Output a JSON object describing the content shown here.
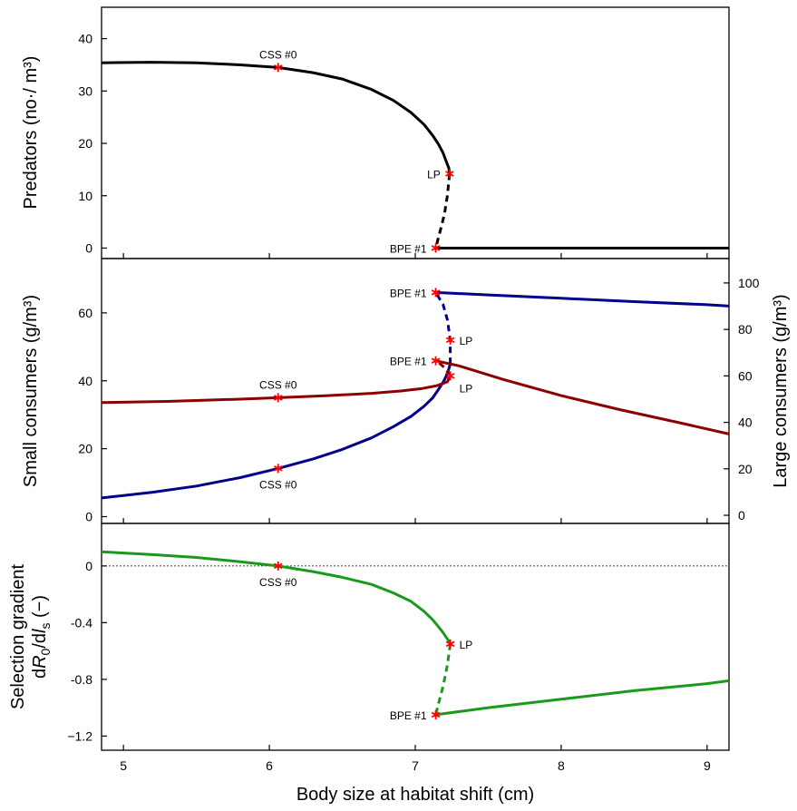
{
  "colors": {
    "predators": "#000000",
    "small": "#00008b",
    "large": "#8b0000",
    "gradient": "#1a9a1a",
    "marker": "#ff0000"
  },
  "x_axis": {
    "label": "Body size at habitat shift (cm)",
    "range": [
      4.85,
      9.15
    ],
    "ticks": [
      5,
      6,
      7,
      8,
      9
    ]
  },
  "chart_data": [
    {
      "type": "line",
      "panel": "top",
      "ylabel": "Predators (no·/ m³)",
      "ylim": [
        -2,
        46
      ],
      "yticks": [
        0,
        10,
        20,
        30,
        40
      ],
      "series": [
        {
          "style": "solid",
          "color": "#000000",
          "x": [
            4.85,
            5.2,
            5.5,
            5.8,
            6.06,
            6.3,
            6.5,
            6.7,
            6.85,
            6.97,
            7.06,
            7.12,
            7.16,
            7.19,
            7.21,
            7.23,
            7.235
          ],
          "y": [
            35.4,
            35.5,
            35.4,
            35.0,
            34.5,
            33.5,
            32.3,
            30.3,
            28.2,
            25.9,
            23.6,
            21.5,
            19.8,
            18.2,
            16.7,
            15.3,
            14.2
          ]
        },
        {
          "style": "dashed",
          "color": "#000000",
          "x": [
            7.235,
            7.22,
            7.2,
            7.17,
            7.14
          ],
          "y": [
            14.2,
            10.0,
            6.5,
            3.2,
            0.0
          ]
        },
        {
          "style": "solid",
          "color": "#000000",
          "x": [
            7.14,
            9.15
          ],
          "y": [
            0.0,
            0.0
          ]
        }
      ],
      "points": [
        {
          "label": "CSS #0",
          "x": 6.06,
          "y": 34.5,
          "pos": "above"
        },
        {
          "label": "LP",
          "x": 7.235,
          "y": 14.2,
          "pos": "left"
        },
        {
          "label": "BPE #1",
          "x": 7.14,
          "y": 0.0,
          "pos": "left"
        }
      ]
    },
    {
      "type": "line",
      "panel": "middle",
      "ylabel": "Small consumers (g/m³)",
      "ylim": [
        -2,
        76
      ],
      "yticks": [
        0,
        20,
        40,
        60
      ],
      "y2label": "Large consumers (g/m³)",
      "y2lim": [
        -3.5,
        110.5
      ],
      "y2ticks": [
        0,
        20,
        40,
        60,
        80,
        100
      ],
      "series": [
        {
          "name": "Small consumers",
          "axis": "left",
          "style": "solid",
          "color": "#00008b",
          "x": [
            4.85,
            5.2,
            5.5,
            5.8,
            6.06,
            6.3,
            6.5,
            6.7,
            6.85,
            6.97,
            7.06,
            7.12,
            7.16,
            7.19,
            7.21,
            7.23,
            7.24
          ],
          "y": [
            5.5,
            7.2,
            9.0,
            11.5,
            14.2,
            17.0,
            19.8,
            23.2,
            26.5,
            29.5,
            32.5,
            35.0,
            37.5,
            39.5,
            41.2,
            43.5,
            45.0
          ]
        },
        {
          "name": "Small consumers unstable",
          "axis": "left",
          "style": "dashed",
          "color": "#00008b",
          "x": [
            7.24,
            7.24,
            7.22,
            7.19,
            7.14
          ],
          "y": [
            45.0,
            52.0,
            58.0,
            62.5,
            66.0
          ]
        },
        {
          "name": "Small consumers zero-predator",
          "axis": "left",
          "style": "solid",
          "color": "#00008b",
          "x": [
            7.14,
            7.5,
            8.0,
            8.5,
            9.0,
            9.15
          ],
          "y": [
            66.0,
            65.3,
            64.3,
            63.3,
            62.4,
            62.0
          ]
        },
        {
          "name": "Large consumers",
          "axis": "right",
          "style": "solid",
          "color": "#8b0000",
          "x": [
            4.85,
            5.3,
            5.8,
            6.06,
            6.4,
            6.7,
            6.9,
            7.05,
            7.15,
            7.22,
            7.24
          ],
          "y": [
            48.5,
            49.0,
            50.0,
            50.6,
            51.5,
            52.5,
            53.5,
            54.6,
            55.8,
            57.5,
            60.0
          ]
        },
        {
          "name": "Large consumers unstable",
          "axis": "right",
          "style": "dashed",
          "color": "#8b0000",
          "x": [
            7.24,
            7.21,
            7.17,
            7.14
          ],
          "y": [
            60.0,
            63.0,
            65.2,
            66.5
          ]
        },
        {
          "name": "Large consumers zero-predator",
          "axis": "right",
          "style": "solid",
          "color": "#8b0000",
          "x": [
            7.14,
            7.3,
            7.6,
            8.0,
            8.4,
            8.8,
            9.15
          ],
          "y": [
            66.5,
            64.3,
            58.5,
            51.5,
            45.5,
            40.0,
            35.0
          ]
        }
      ],
      "points": [
        {
          "label": "BPE #1",
          "x": 7.14,
          "y": 66.0,
          "axis": "left",
          "pos": "left"
        },
        {
          "label": "LP",
          "x": 7.24,
          "y": 52.0,
          "axis": "left",
          "pos": "right"
        },
        {
          "label": "CSS #0",
          "x": 6.06,
          "y": 14.2,
          "axis": "left",
          "pos": "below"
        },
        {
          "label": "BPE #1",
          "x": 7.14,
          "y": 66.5,
          "axis": "right",
          "pos": "left"
        },
        {
          "label": "LP",
          "x": 7.24,
          "y": 60.0,
          "axis": "right",
          "pos": "below-right"
        },
        {
          "label": "CSS #0",
          "x": 6.06,
          "y": 50.6,
          "axis": "right",
          "pos": "above"
        }
      ]
    },
    {
      "type": "line",
      "panel": "bottom",
      "ylabel_line1": "Selection gradient",
      "ylabel_line2_pre": "d",
      "ylabel_line2_R": "R",
      "ylabel_line2_sub0": "0",
      "ylabel_line2_mid": "/d",
      "ylabel_line2_l": "l",
      "ylabel_line2_subs": "s",
      "ylabel_line2_post": " (−)",
      "ylim": [
        -1.3,
        0.3
      ],
      "yticks": [
        0,
        -0.4,
        -0.8,
        -1.2
      ],
      "ytick_labels": [
        "0",
        "-0.4",
        "-0.8",
        "−1.2"
      ],
      "zero_line": true,
      "series": [
        {
          "style": "solid",
          "color": "#1a9a1a",
          "x": [
            4.85,
            5.2,
            5.5,
            5.8,
            6.06,
            6.3,
            6.5,
            6.7,
            6.85,
            6.97,
            7.06,
            7.12,
            7.16,
            7.19,
            7.21,
            7.23,
            7.24
          ],
          "y": [
            0.1,
            0.08,
            0.06,
            0.03,
            0.0,
            -0.04,
            -0.08,
            -0.13,
            -0.19,
            -0.25,
            -0.32,
            -0.38,
            -0.43,
            -0.47,
            -0.5,
            -0.53,
            -0.55
          ]
        },
        {
          "style": "dashed",
          "color": "#1a9a1a",
          "x": [
            7.24,
            7.22,
            7.19,
            7.16,
            7.14
          ],
          "y": [
            -0.55,
            -0.7,
            -0.85,
            -0.97,
            -1.05
          ]
        },
        {
          "style": "solid",
          "color": "#1a9a1a",
          "x": [
            7.14,
            7.5,
            8.0,
            8.5,
            9.0,
            9.15
          ],
          "y": [
            -1.05,
            -1.0,
            -0.94,
            -0.88,
            -0.83,
            -0.81
          ]
        }
      ],
      "points": [
        {
          "label": "CSS #0",
          "x": 6.06,
          "y": 0.0,
          "pos": "below"
        },
        {
          "label": "LP",
          "x": 7.24,
          "y": -0.55,
          "pos": "right"
        },
        {
          "label": "BPE #1",
          "x": 7.14,
          "y": -1.05,
          "pos": "left"
        }
      ]
    }
  ]
}
